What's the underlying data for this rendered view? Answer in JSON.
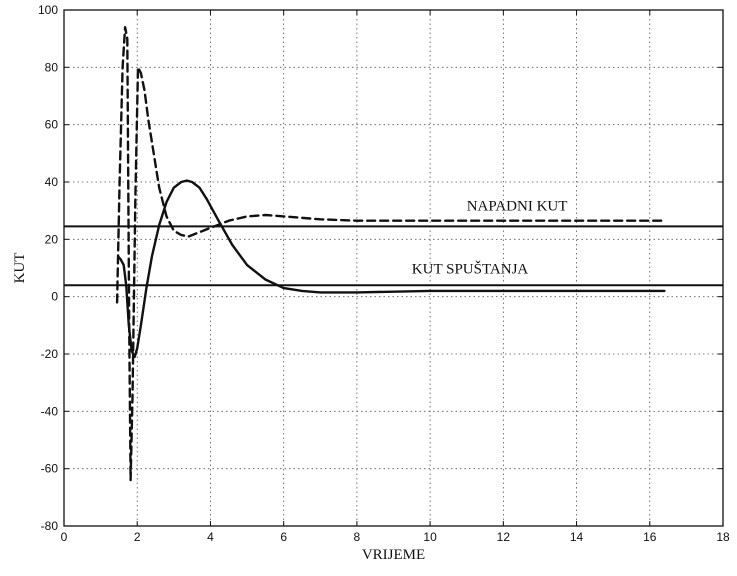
{
  "chart_data": {
    "type": "line",
    "xlabel": "VRIJEME",
    "ylabel": "KUT",
    "xlim": [
      0,
      18
    ],
    "ylim": [
      -80,
      100
    ],
    "xticks": [
      0,
      2,
      4,
      6,
      8,
      10,
      12,
      14,
      16,
      18
    ],
    "yticks": [
      -80,
      -60,
      -40,
      -20,
      0,
      20,
      40,
      60,
      80,
      100
    ],
    "grid": true,
    "annotations": [
      {
        "text": "NAPADNI KUT",
        "x": 11.0,
        "y": 30
      },
      {
        "text": "KUT SPUŠTANJA",
        "x": 9.5,
        "y": 8
      }
    ],
    "reference_lines": [
      {
        "y": 24.5,
        "x": [
          0,
          18
        ]
      },
      {
        "y": 4,
        "x": [
          0,
          18
        ]
      }
    ],
    "series": [
      {
        "style": "dashed",
        "x": [
          1.45,
          1.52,
          1.6,
          1.67,
          1.73,
          1.78,
          1.82,
          1.87,
          1.95,
          2.02,
          2.1,
          2.2,
          2.3,
          2.45,
          2.6,
          2.8,
          3.0,
          3.2,
          3.4,
          3.6,
          4.0,
          4.5,
          5.0,
          5.5,
          6.0,
          7.0,
          8.0,
          10.0,
          12.0,
          14.0,
          16.4
        ],
        "y": [
          -2,
          40,
          80,
          94,
          90,
          -10,
          -64,
          -35,
          35,
          80,
          78,
          72,
          62,
          50,
          38,
          28,
          23,
          21.5,
          21,
          22,
          24,
          26.5,
          28,
          28.5,
          28,
          27,
          26.5,
          26.5,
          26.5,
          26.5,
          26.5
        ]
      },
      {
        "style": "solid",
        "x": [
          1.48,
          1.55,
          1.63,
          1.7,
          1.77,
          1.85,
          1.93,
          2.0,
          2.1,
          2.25,
          2.4,
          2.6,
          2.8,
          3.0,
          3.2,
          3.35,
          3.5,
          3.7,
          3.9,
          4.2,
          4.6,
          5.0,
          5.5,
          6.0,
          6.5,
          7.0,
          8.0,
          10.0,
          12.0,
          14.0,
          16.4
        ],
        "y": [
          14,
          13,
          11,
          4,
          -10,
          -19,
          -21,
          -18,
          -10,
          3,
          14,
          25,
          33,
          38,
          40,
          40.5,
          40,
          38,
          34,
          27,
          18,
          11,
          6,
          3,
          2,
          1.5,
          1.5,
          2,
          2,
          2,
          2
        ]
      }
    ]
  }
}
